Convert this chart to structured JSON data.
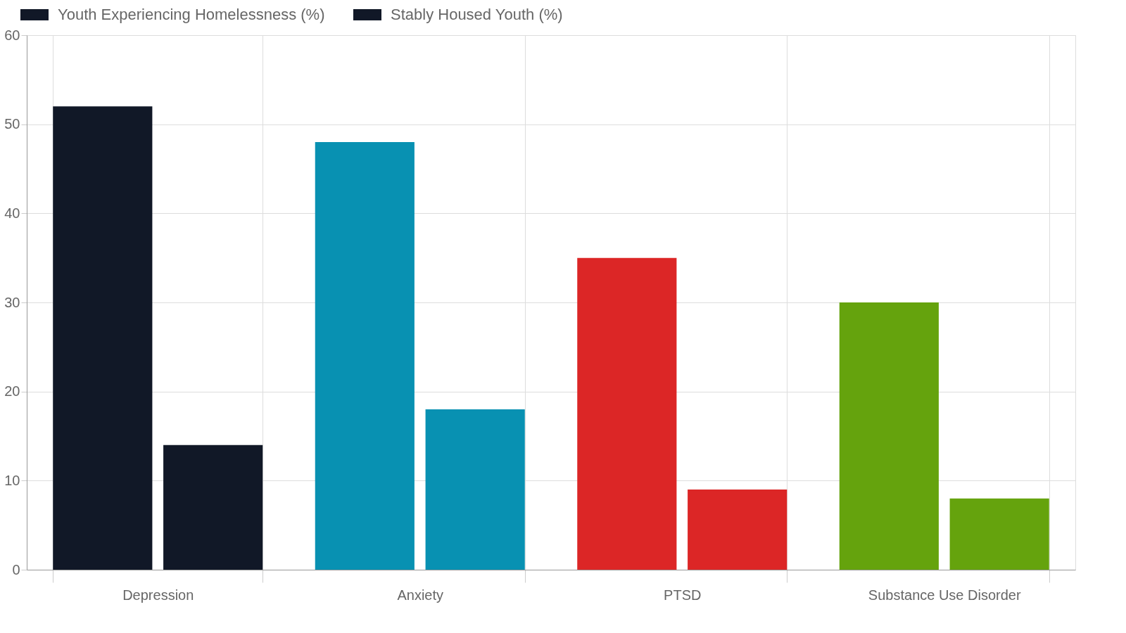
{
  "chart_data": {
    "type": "bar",
    "categories": [
      "Depression",
      "Anxiety",
      "PTSD",
      "Substance Use Disorder"
    ],
    "series": [
      {
        "name": "Youth Experiencing Homelessness (%)",
        "color": "#111827",
        "colors": [
          "#111827",
          "#0891b2",
          "#dc2626",
          "#65a30d"
        ],
        "values": [
          52,
          48,
          35,
          30
        ]
      },
      {
        "name": "Stably Housed Youth (%)",
        "color": "#111827",
        "colors": [
          "#111827",
          "#0891b2",
          "#dc2626",
          "#65a30d"
        ],
        "values": [
          14,
          18,
          9,
          8
        ]
      }
    ],
    "ylim": [
      0,
      60
    ],
    "yticks": [
      0,
      10,
      20,
      30,
      40,
      50,
      60
    ],
    "grid": true,
    "legend": "top"
  }
}
